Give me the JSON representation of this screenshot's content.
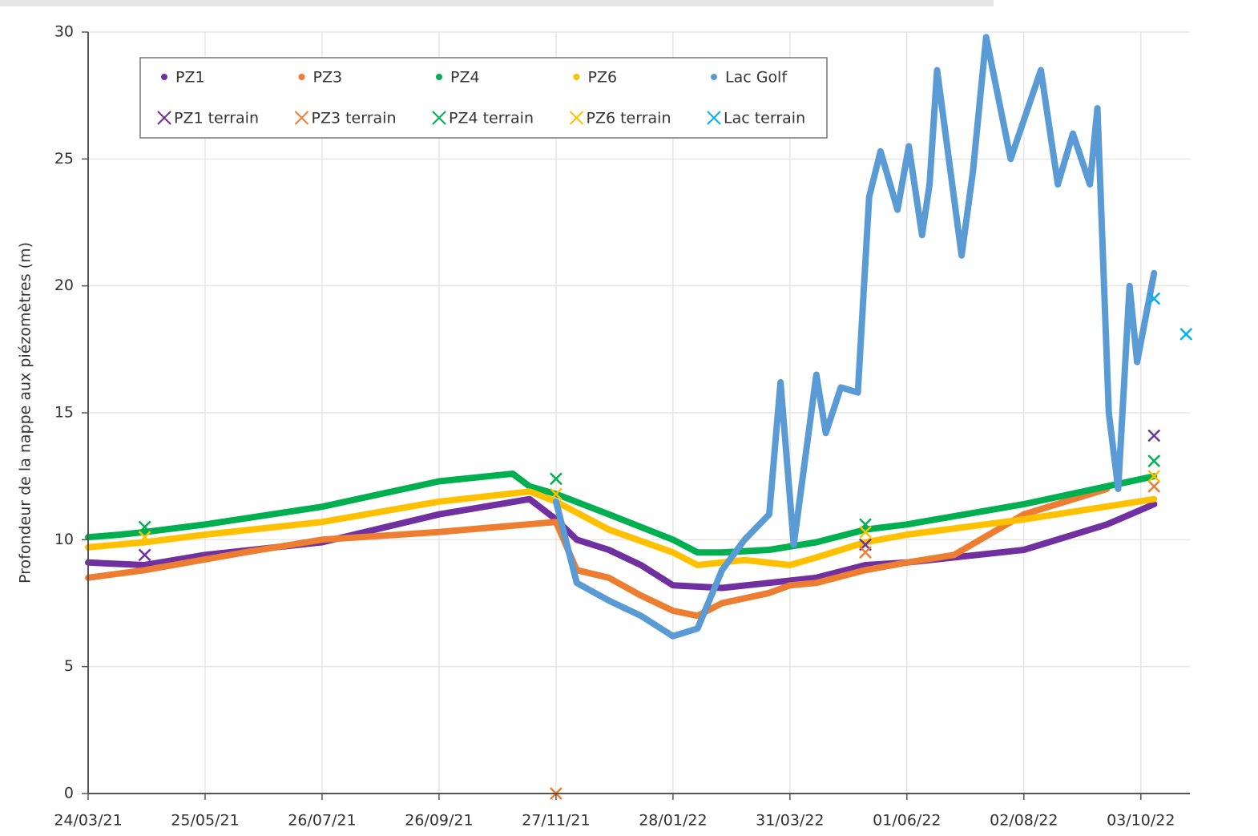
{
  "chart_data": {
    "type": "line",
    "y_label": "Profondeur de la nappe aux piézomètres (m)",
    "xlim": [
      "2021-03-24",
      "2022-10-29"
    ],
    "xticks": [
      {
        "value": "2021-03-24",
        "label": "24/03/21"
      },
      {
        "value": "2021-05-25",
        "label": "25/05/21"
      },
      {
        "value": "2021-07-26",
        "label": "26/07/21"
      },
      {
        "value": "2021-09-26",
        "label": "26/09/21"
      },
      {
        "value": "2021-11-27",
        "label": "27/11/21"
      },
      {
        "value": "2022-01-28",
        "label": "28/01/22"
      },
      {
        "value": "2022-03-31",
        "label": "31/03/22"
      },
      {
        "value": "2022-06-01",
        "label": "01/06/22"
      },
      {
        "value": "2022-08-02",
        "label": "02/08/22"
      },
      {
        "value": "2022-10-03",
        "label": "03/10/22"
      }
    ],
    "ylim": [
      0,
      30
    ],
    "yticks": [
      0,
      5,
      10,
      15,
      20,
      25,
      30
    ],
    "grid": true,
    "legend": "top-left",
    "series": [
      {
        "name": "PZ1",
        "color": "#7030a0",
        "style": "line",
        "x": [
          "2021-03-24",
          "2021-04-23",
          "2021-05-25",
          "2021-07-26",
          "2021-09-26",
          "2021-11-13",
          "2021-11-27",
          "2021-12-08",
          "2021-12-25",
          "2022-01-11",
          "2022-01-28",
          "2022-02-23",
          "2022-03-20",
          "2022-04-14",
          "2022-05-10",
          "2022-06-01",
          "2022-08-02",
          "2022-09-15",
          "2022-10-10"
        ],
        "values": [
          9.1,
          9.0,
          9.4,
          9.9,
          11.0,
          11.6,
          10.8,
          10.0,
          9.6,
          9.0,
          8.2,
          8.1,
          8.3,
          8.5,
          9.0,
          9.1,
          9.6,
          10.6,
          11.4
        ]
      },
      {
        "name": "PZ3",
        "color": "#ed7d31",
        "style": "line",
        "x": [
          "2021-03-24",
          "2021-04-23",
          "2021-06-15",
          "2021-07-26",
          "2021-09-26",
          "2021-11-27",
          "2021-12-08",
          "2021-12-25",
          "2022-01-11",
          "2022-01-28",
          "2022-02-10",
          "2022-02-23",
          "2022-03-20",
          "2022-03-31",
          "2022-04-14",
          "2022-05-10",
          "2022-06-01",
          "2022-06-26",
          "2022-08-02",
          "2022-09-15"
        ],
        "values": [
          8.5,
          8.8,
          9.5,
          10.0,
          10.3,
          10.7,
          8.8,
          8.5,
          7.8,
          7.2,
          7.0,
          7.5,
          7.9,
          8.2,
          8.3,
          8.8,
          9.1,
          9.4,
          11.0,
          12.0
        ]
      },
      {
        "name": "PZ4",
        "color": "#00b050",
        "style": "line",
        "x": [
          "2021-03-24",
          "2021-04-10",
          "2021-04-23",
          "2021-05-25",
          "2021-07-26",
          "2021-09-26",
          "2021-11-04",
          "2021-11-13",
          "2021-11-27",
          "2021-12-25",
          "2022-01-28",
          "2022-02-10",
          "2022-02-23",
          "2022-03-20",
          "2022-04-14",
          "2022-05-10",
          "2022-06-01",
          "2022-08-02",
          "2022-10-10"
        ],
        "values": [
          10.1,
          10.2,
          10.3,
          10.6,
          11.3,
          12.3,
          12.6,
          12.1,
          11.8,
          11.0,
          10.0,
          9.5,
          9.5,
          9.6,
          9.9,
          10.4,
          10.6,
          11.4,
          12.5
        ]
      },
      {
        "name": "PZ6",
        "color": "#ffc000",
        "style": "line",
        "x": [
          "2021-03-24",
          "2021-04-23",
          "2021-05-25",
          "2021-07-26",
          "2021-09-26",
          "2021-11-13",
          "2021-11-27",
          "2021-12-25",
          "2022-01-28",
          "2022-02-10",
          "2022-03-07",
          "2022-03-31",
          "2022-04-14",
          "2022-05-10",
          "2022-06-01",
          "2022-08-02",
          "2022-10-10"
        ],
        "values": [
          9.7,
          9.9,
          10.2,
          10.7,
          11.5,
          11.9,
          11.5,
          10.4,
          9.5,
          9.0,
          9.2,
          9.0,
          9.3,
          9.9,
          10.2,
          10.8,
          11.6
        ]
      },
      {
        "name": "Lac Golf",
        "color": "#5b9bd5",
        "style": "line",
        "x": [
          "2021-11-27",
          "2021-12-08",
          "2021-12-25",
          "2022-01-11",
          "2022-01-28",
          "2022-02-10",
          "2022-02-23",
          "2022-03-07",
          "2022-03-20",
          "2022-03-26",
          "2022-04-02",
          "2022-04-14",
          "2022-04-19",
          "2022-04-27",
          "2022-05-06",
          "2022-05-12",
          "2022-05-18",
          "2022-05-27",
          "2022-06-02",
          "2022-06-09",
          "2022-06-13",
          "2022-06-17",
          "2022-06-30",
          "2022-07-06",
          "2022-07-13",
          "2022-07-26",
          "2022-08-11",
          "2022-08-20",
          "2022-08-28",
          "2022-09-06",
          "2022-09-10",
          "2022-09-16",
          "2022-09-21",
          "2022-09-27",
          "2022-10-01",
          "2022-10-10"
        ],
        "values": [
          11.5,
          8.3,
          7.6,
          7.0,
          6.2,
          6.5,
          8.8,
          10.0,
          11.0,
          16.2,
          9.8,
          16.5,
          14.2,
          16.0,
          15.8,
          23.5,
          25.3,
          23.0,
          25.5,
          22.0,
          24.0,
          28.5,
          21.2,
          24.5,
          29.8,
          25.0,
          28.5,
          24.0,
          26.0,
          24.0,
          27.0,
          15.0,
          12.0,
          20.0,
          17.0,
          20.5
        ]
      },
      {
        "name": "PZ1 terrain",
        "color": "#7030a0",
        "style": "cross",
        "x": [
          "2021-04-23",
          "2022-05-10",
          "2022-10-10"
        ],
        "values": [
          9.4,
          9.8,
          14.1
        ]
      },
      {
        "name": "PZ3 terrain",
        "color": "#ed7d31",
        "style": "cross",
        "x": [
          "2021-11-27",
          "2022-05-10",
          "2022-10-10"
        ],
        "values": [
          0,
          9.5,
          12.1
        ]
      },
      {
        "name": "PZ4 terrain",
        "color": "#00b050",
        "style": "cross",
        "x": [
          "2021-04-23",
          "2021-11-27",
          "2022-05-10",
          "2022-10-10"
        ],
        "values": [
          10.5,
          12.4,
          10.6,
          13.1
        ]
      },
      {
        "name": "PZ6 terrain",
        "color": "#ffc000",
        "style": "cross",
        "x": [
          "2021-04-23",
          "2021-11-27",
          "2022-05-10",
          "2022-10-10"
        ],
        "values": [
          10.1,
          11.8,
          10.3,
          12.5
        ]
      },
      {
        "name": "Lac terrain",
        "color": "#00b0f0",
        "style": "cross",
        "x": [
          "2022-10-10",
          "2022-10-27"
        ],
        "values": [
          19.5,
          18.1
        ]
      }
    ]
  }
}
